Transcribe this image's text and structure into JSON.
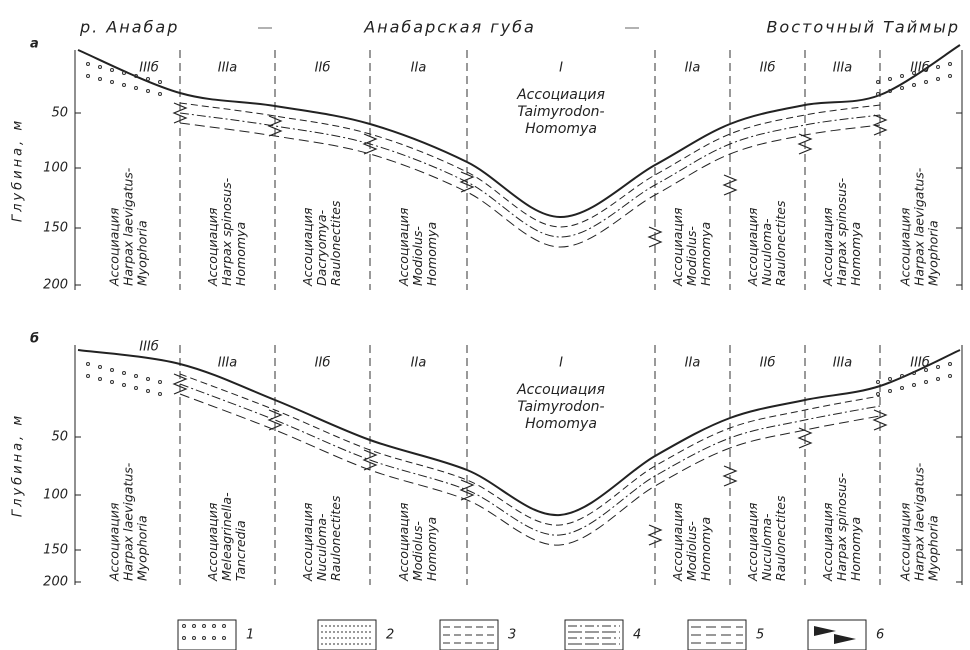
{
  "header": {
    "left": "р. Анабар",
    "center": "Анабарская губа",
    "right": "Восточный Таймыр"
  },
  "panels": [
    {
      "label": "а",
      "y_axis_label": "Глубина, м",
      "y_ticks": [
        "50",
        "100",
        "150",
        "200"
      ],
      "zones": [
        {
          "label": "IIIб",
          "association": [
            "Ассоциация",
            "Harpax laevigatus-",
            "Myophoria"
          ]
        },
        {
          "label": "IIIа",
          "association": [
            "Ассоциация",
            "Harpax spinosus-",
            "Homomya"
          ]
        },
        {
          "label": "IIб",
          "association": [
            "Ассоциация",
            "Dacryomya-",
            "Raulonectites"
          ]
        },
        {
          "label": "IIа",
          "association": [
            "Ассоциация",
            "Modiolus-",
            "Homomya"
          ]
        },
        {
          "label": "I",
          "association": [
            "Ассоциация",
            "Taimyrodon-",
            "Homomya"
          ]
        },
        {
          "label": "IIа",
          "association": [
            "Ассоциация",
            "Modiolus-",
            "Homomya"
          ]
        },
        {
          "label": "IIб",
          "association": [
            "Ассоциация",
            "Nuculoma-",
            "Raulonectites"
          ]
        },
        {
          "label": "IIIа",
          "association": [
            "Ассоциация",
            "Harpax spinosus-",
            "Homomya"
          ]
        },
        {
          "label": "IIIб",
          "association": [
            "Ассоциация",
            "Harpax laevigatus-",
            "Myophoria"
          ]
        }
      ]
    },
    {
      "label": "б",
      "y_axis_label": "Глубина, м",
      "y_ticks": [
        "50",
        "100",
        "150",
        "200"
      ],
      "zones": [
        {
          "label": "IIIб",
          "association": [
            "Ассоциация",
            "Harpax laevigatus-",
            "Myophoria"
          ]
        },
        {
          "label": "IIIа",
          "association": [
            "Ассоциация",
            "Meleagrinella-",
            "Tancredia"
          ]
        },
        {
          "label": "IIб",
          "association": [
            "Ассоциация",
            "Nuculoma-",
            "Raulonectites"
          ]
        },
        {
          "label": "IIа",
          "association": [
            "Ассоциация",
            "Modiolus-",
            "Homomya"
          ]
        },
        {
          "label": "I",
          "association": [
            "Ассоциация",
            "Taimyrodon-",
            "Homomya"
          ]
        },
        {
          "label": "IIа",
          "association": [
            "Ассоциация",
            "Modiolus-",
            "Homomya"
          ]
        },
        {
          "label": "IIб",
          "association": [
            "Ассоциация",
            "Nuculoma-",
            "Raulonectites"
          ]
        },
        {
          "label": "IIIа",
          "association": [
            "Ассоциация",
            "Harpax spinosus-",
            "Homomya"
          ]
        },
        {
          "label": "IIIб",
          "association": [
            "Ассоциация",
            "Harpax laevigatus-",
            "Myophoria"
          ]
        }
      ]
    }
  ],
  "legend": [
    {
      "label": "1"
    },
    {
      "label": "2"
    },
    {
      "label": "3"
    },
    {
      "label": "4"
    },
    {
      "label": "5"
    },
    {
      "label": "6"
    }
  ]
}
